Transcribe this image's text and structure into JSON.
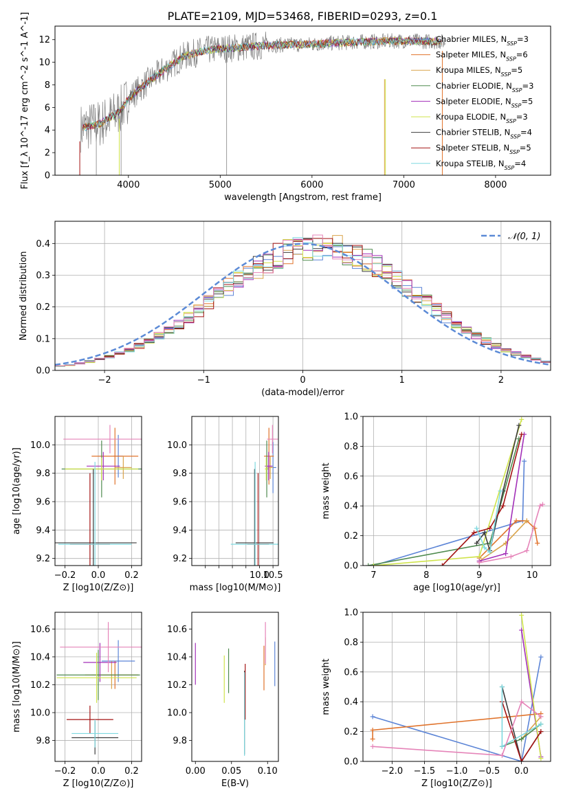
{
  "figure_title": "PLATE=2109, MJD=53468, FIBERID=0293, z=0.1",
  "colors": {
    "Chabrier MILES": "#5b84d6",
    "Salpeter MILES": "#e0722a",
    "Kroupa MILES": "#d9a34a",
    "Chabrier ELODIE": "#4e8a4e",
    "Salpeter ELODIE": "#a22fb8",
    "Kroupa ELODIE": "#cfe34a",
    "Chabrier STELIB": "#3b3b3b",
    "Salpeter STELIB": "#a31212",
    "Kroupa STELIB": "#7ed9e0",
    "Pink extra": "#e583b8",
    "Data": "#808080",
    "Gaussian": "#5b8ad6"
  },
  "chart_data": [
    {
      "id": "spectrum",
      "type": "line",
      "title": "PLATE=2109, MJD=53468, FIBERID=0293, z=0.1",
      "xlabel": "wavelength [Angstrom, rest frame]",
      "ylabel": "Flux [f_λ 10^-17 erg cm^-2 s^-1 A^-1]",
      "xlim": [
        3200,
        8600
      ],
      "ylim": [
        0,
        13.2
      ],
      "xticks": [
        4000,
        5000,
        6000,
        7000,
        8000
      ],
      "yticks": [
        0,
        2,
        4,
        6,
        8,
        10,
        12
      ],
      "legend_position": "upper-right",
      "legend": [
        "Chabrier MILES, N_SSP=3",
        "Salpeter MILES, N_SSP=6",
        "Kroupa MILES, N_SSP=5",
        "Chabrier ELODIE, N_SSP=3",
        "Salpeter ELODIE, N_SSP=5",
        "Kroupa ELODIE, N_SSP=3",
        "Chabrier STELIB, N_SSP=4",
        "Salpeter STELIB, N_SSP=5",
        "Kroupa STELIB, N_SSP=4"
      ],
      "continuum": {
        "x": [
          3500,
          3700,
          3900,
          4000,
          4200,
          4400,
          4600,
          4800,
          5000,
          5200,
          5500,
          6000,
          6500,
          7000,
          7500
        ],
        "y": [
          4.2,
          4.6,
          5.6,
          6.8,
          8.2,
          9.4,
          10.5,
          11.0,
          11.2,
          11.3,
          11.5,
          11.6,
          11.8,
          11.9,
          11.8
        ]
      }
    },
    {
      "id": "residuals",
      "type": "histogram",
      "xlabel": "(data-model)/error",
      "ylabel": "Normed distribution",
      "xlim": [
        -2.5,
        2.5
      ],
      "ylim": [
        0,
        0.47
      ],
      "xticks": [
        -2,
        -1,
        0,
        1,
        2
      ],
      "yticks": [
        0.0,
        0.1,
        0.2,
        0.3,
        0.4
      ],
      "grid": true,
      "legend": "𝒩(0, 1)",
      "legend_position": "upper-right"
    },
    {
      "id": "age_vs_Z",
      "type": "errorbar",
      "xlabel": "Z [log10(Z/Z⊙)]",
      "ylabel": "age  [log10(age/yr)]",
      "xlim": [
        -0.26,
        0.26
      ],
      "ylim": [
        9.15,
        10.2
      ],
      "xticks": [
        -0.2,
        0.0,
        0.2
      ],
      "yticks": [
        9.2,
        9.4,
        9.6,
        9.8,
        10.0
      ],
      "grid": true,
      "points": [
        {
          "c": "Chabrier MILES",
          "x": 0.12,
          "xerr": 0.03,
          "y": 9.92,
          "yerr": 0.15
        },
        {
          "c": "Salpeter MILES",
          "x": 0.1,
          "xerr": 0.14,
          "y": 9.92,
          "yerr": 0.2
        },
        {
          "c": "Kroupa MILES",
          "x": 0.15,
          "xerr": 0.05,
          "y": 9.84,
          "yerr": 0.08
        },
        {
          "c": "Chabrier ELODIE",
          "x": 0.02,
          "xerr": 0.24,
          "y": 9.83,
          "yerr": 0.2
        },
        {
          "c": "Salpeter ELODIE",
          "x": 0.03,
          "xerr": 0.1,
          "y": 9.85,
          "yerr": 0.1
        },
        {
          "c": "Kroupa ELODIE",
          "x": 0.02,
          "xerr": 0.22,
          "y": 9.83,
          "yerr": 0.08
        },
        {
          "c": "Chabrier STELIB",
          "x": -0.03,
          "xerr": 0.26,
          "y": 9.31,
          "yerr": 0.52
        },
        {
          "c": "Salpeter STELIB",
          "x": -0.05,
          "xerr": 0.12,
          "y": 9.3,
          "yerr": 0.5
        },
        {
          "c": "Kroupa STELIB",
          "x": -0.02,
          "xerr": 0.22,
          "y": 9.3,
          "yerr": 0.58
        },
        {
          "c": "Pink extra",
          "x": 0.07,
          "xerr": 0.28,
          "y": 10.04,
          "yerr": 0.1
        }
      ]
    },
    {
      "id": "age_vs_mass",
      "type": "errorbar",
      "xlabel": "mass [log10(M/M⊙)]",
      "xlim": [
        7.5,
        10.7
      ],
      "ylim": [
        9.15,
        10.2
      ],
      "xticks": [
        8.0,
        8.5,
        9.0,
        9.5,
        10.0,
        10.5
      ],
      "xtick_labels": [
        "",
        "",
        "",
        "",
        "10.0",
        "10.5"
      ],
      "yticks": [
        9.2,
        9.4,
        9.6,
        9.8,
        10.0
      ],
      "grid": true,
      "points": [
        {
          "c": "Chabrier MILES",
          "x": 10.5,
          "xerr": 0.12,
          "y": 9.84,
          "yerr": 0.18
        },
        {
          "c": "Salpeter MILES",
          "x": 10.35,
          "xerr": 0.18,
          "y": 9.92,
          "yerr": 0.2
        },
        {
          "c": "Kroupa MILES",
          "x": 10.4,
          "xerr": 0.1,
          "y": 9.84,
          "yerr": 0.08
        },
        {
          "c": "Chabrier ELODIE",
          "x": 10.27,
          "xerr": 0.05,
          "y": 9.83,
          "yerr": 0.2
        },
        {
          "c": "Salpeter ELODIE",
          "x": 10.34,
          "xerr": 0.14,
          "y": 9.85,
          "yerr": 0.1
        },
        {
          "c": "Kroupa ELODIE",
          "x": 10.25,
          "xerr": 0.05,
          "y": 9.83,
          "yerr": 0.08
        },
        {
          "c": "Chabrier STELIB",
          "x": 9.82,
          "xerr": 0.7,
          "y": 9.31,
          "yerr": 0.52
        },
        {
          "c": "Salpeter STELIB",
          "x": 9.95,
          "xerr": 0.4,
          "y": 9.3,
          "yerr": 0.5
        },
        {
          "c": "Kroupa STELIB",
          "x": 9.84,
          "xerr": 0.9,
          "y": 9.3,
          "yerr": 0.58
        },
        {
          "c": "Pink extra",
          "x": 10.48,
          "xerr": 0.2,
          "y": 10.04,
          "yerr": 0.1
        }
      ]
    },
    {
      "id": "mass_weight_vs_age",
      "type": "line",
      "xlabel": "age  [log10(age/yr)]",
      "ylabel": "mass weight",
      "xlim": [
        6.8,
        10.35
      ],
      "ylim": [
        0,
        1
      ],
      "xticks": [
        7,
        8,
        9,
        10
      ],
      "yticks": [
        0.0,
        0.2,
        0.4,
        0.6,
        0.8,
        1.0
      ],
      "grid": true,
      "series": [
        {
          "c": "Chabrier MILES",
          "x": [
            7.0,
            9.82,
            9.85
          ],
          "y": [
            0.0,
            0.3,
            0.7
          ]
        },
        {
          "c": "Salpeter MILES",
          "x": [
            9.0,
            9.7,
            9.9,
            10.05,
            10.1
          ],
          "y": [
            0.05,
            0.3,
            0.3,
            0.25,
            0.15
          ]
        },
        {
          "c": "Kroupa MILES",
          "x": [
            9.0,
            9.5,
            9.9
          ],
          "y": [
            0.03,
            0.15,
            0.3
          ]
        },
        {
          "c": "Chabrier ELODIE",
          "x": [
            6.9,
            9.2,
            9.75
          ],
          "y": [
            0.0,
            0.15,
            0.85
          ]
        },
        {
          "c": "Salpeter ELODIE",
          "x": [
            9.0,
            9.5,
            9.85
          ],
          "y": [
            0.03,
            0.08,
            0.88
          ]
        },
        {
          "c": "Kroupa ELODIE",
          "x": [
            7.0,
            9.0,
            9.8
          ],
          "y": [
            0.0,
            0.06,
            0.98
          ]
        },
        {
          "c": "Chabrier STELIB",
          "x": [
            8.95,
            9.1,
            9.2,
            9.45,
            9.75
          ],
          "y": [
            0.15,
            0.22,
            0.1,
            0.5,
            0.94
          ]
        },
        {
          "c": "Salpeter STELIB",
          "x": [
            8.3,
            8.9,
            9.2,
            9.45,
            9.8
          ],
          "y": [
            0.0,
            0.22,
            0.25,
            0.4,
            0.88
          ]
        },
        {
          "c": "Kroupa STELIB",
          "x": [
            8.95,
            9.1,
            9.2,
            9.4
          ],
          "y": [
            0.25,
            0.12,
            0.09,
            0.5
          ]
        },
        {
          "c": "Pink extra",
          "x": [
            9.0,
            9.6,
            9.9,
            10.15,
            10.2
          ],
          "y": [
            0.02,
            0.06,
            0.1,
            0.4,
            0.41
          ]
        }
      ]
    },
    {
      "id": "mass_vs_Z",
      "type": "errorbar",
      "xlabel": "Z [log10(Z/Z⊙)]",
      "ylabel": "mass [log10(M/M⊙)]",
      "xlim": [
        -0.26,
        0.26
      ],
      "ylim": [
        9.65,
        10.72
      ],
      "xticks": [
        -0.2,
        0.0,
        0.2
      ],
      "yticks": [
        9.8,
        10.0,
        10.2,
        10.4,
        10.6
      ],
      "grid": true,
      "points": [
        {
          "c": "Chabrier MILES",
          "x": 0.12,
          "xerr": 0.1,
          "y": 10.37,
          "yerr": 0.15
        },
        {
          "c": "Salpeter MILES",
          "x": 0.1,
          "xerr": 0.14,
          "y": 10.27,
          "yerr": 0.1
        },
        {
          "c": "Kroupa MILES",
          "x": 0.08,
          "xerr": 0.16,
          "y": 10.27,
          "yerr": 0.1
        },
        {
          "c": "Chabrier ELODIE",
          "x": 0.0,
          "xerr": 0.25,
          "y": 10.27,
          "yerr": 0.18
        },
        {
          "c": "Salpeter ELODIE",
          "x": 0.01,
          "xerr": 0.1,
          "y": 10.36,
          "yerr": 0.14
        },
        {
          "c": "Kroupa ELODIE",
          "x": -0.01,
          "xerr": 0.24,
          "y": 10.25,
          "yerr": 0.18
        },
        {
          "c": "Chabrier STELIB",
          "x": -0.02,
          "xerr": 0.14,
          "y": 9.82,
          "yerr": 0.12
        },
        {
          "c": "Salpeter STELIB",
          "x": -0.05,
          "xerr": 0.14,
          "y": 9.95,
          "yerr": 0.1
        },
        {
          "c": "Kroupa STELIB",
          "x": -0.02,
          "xerr": 0.14,
          "y": 9.85,
          "yerr": 0.1
        },
        {
          "c": "Pink extra",
          "x": 0.06,
          "xerr": 0.29,
          "y": 10.47,
          "yerr": 0.18
        }
      ]
    },
    {
      "id": "mass_vs_EBV",
      "type": "errorbar",
      "xlabel": "E(B-V)",
      "xlim": [
        -0.005,
        0.115
      ],
      "ylim": [
        9.65,
        10.72
      ],
      "xticks": [
        0.0,
        0.05,
        0.1
      ],
      "xtick_labels": [
        "0.00",
        "0.05",
        "0.10"
      ],
      "yticks": [
        9.8,
        10.0,
        10.2,
        10.4,
        10.6
      ],
      "grid": false,
      "points": [
        {
          "c": "Chabrier MILES",
          "x": 0.11,
          "xerr": 0,
          "y": 10.35,
          "yerr": 0.16
        },
        {
          "c": "Salpeter MILES",
          "x": 0.095,
          "xerr": 0,
          "y": 10.32,
          "yerr": 0.16
        },
        {
          "c": "Kroupa MILES",
          "x": 0.097,
          "xerr": 0,
          "y": 10.44,
          "yerr": 0.1
        },
        {
          "c": "Chabrier ELODIE",
          "x": 0.046,
          "xerr": 0,
          "y": 10.3,
          "yerr": 0.16
        },
        {
          "c": "Salpeter ELODIE",
          "x": 0.0,
          "xerr": 0,
          "y": 10.35,
          "yerr": 0.15
        },
        {
          "c": "Kroupa ELODIE",
          "x": 0.04,
          "xerr": 0,
          "y": 10.24,
          "yerr": 0.17
        },
        {
          "c": "Chabrier STELIB",
          "x": 0.068,
          "xerr": 0,
          "y": 10.0,
          "yerr": 0.3
        },
        {
          "c": "Salpeter STELIB",
          "x": 0.069,
          "xerr": 0,
          "y": 10.15,
          "yerr": 0.2
        },
        {
          "c": "Kroupa STELIB",
          "x": 0.068,
          "xerr": 0,
          "y": 9.99,
          "yerr": 0.3
        },
        {
          "c": "Pink extra",
          "x": 0.097,
          "xerr": 0,
          "y": 10.5,
          "yerr": 0.15
        }
      ]
    },
    {
      "id": "mass_weight_vs_Z",
      "type": "line",
      "xlabel": "Z [log10(Z/Z⊙)]",
      "ylabel": "mass weight",
      "xlim": [
        -2.45,
        0.45
      ],
      "ylim": [
        0,
        1
      ],
      "xticks": [
        -2.0,
        -1.5,
        -1.0,
        -0.5,
        0.0
      ],
      "yticks": [
        0.0,
        0.2,
        0.4,
        0.6,
        0.8,
        1.0
      ],
      "grid": true,
      "series": [
        {
          "c": "Chabrier MILES",
          "x": [
            -2.3,
            0.0,
            0.3
          ],
          "y": [
            0.3,
            0.0,
            0.7
          ]
        },
        {
          "c": "Salpeter MILES",
          "x": [
            -2.3,
            -2.3,
            0.3
          ],
          "y": [
            0.15,
            0.21,
            0.32
          ]
        },
        {
          "c": "Kroupa MILES",
          "x": [
            0.0,
            0.3
          ],
          "y": [
            0.15,
            0.3
          ]
        },
        {
          "c": "Chabrier ELODIE",
          "x": [
            -0.3,
            0.0,
            0.3
          ],
          "y": [
            0.1,
            0.15,
            0.25
          ]
        },
        {
          "c": "Salpeter ELODIE",
          "x": [
            0.0,
            0.3
          ],
          "y": [
            0.88,
            0.03
          ]
        },
        {
          "c": "Kroupa ELODIE",
          "x": [
            0.0,
            0.3
          ],
          "y": [
            0.98,
            0.02
          ]
        },
        {
          "c": "Chabrier STELIB",
          "x": [
            -0.3,
            0.0,
            0.3
          ],
          "y": [
            0.5,
            0.0,
            0.2
          ]
        },
        {
          "c": "Salpeter STELIB",
          "x": [
            -0.3,
            0.0,
            0.3
          ],
          "y": [
            0.4,
            0.0,
            0.2
          ]
        },
        {
          "c": "Kroupa STELIB",
          "x": [
            -0.3,
            -0.3,
            0.3
          ],
          "y": [
            0.5,
            0.1,
            0.25
          ]
        },
        {
          "c": "Pink extra",
          "x": [
            -2.3,
            -0.3,
            0.0,
            0.3
          ],
          "y": [
            0.1,
            0.04,
            0.4,
            0.3
          ]
        }
      ]
    }
  ]
}
